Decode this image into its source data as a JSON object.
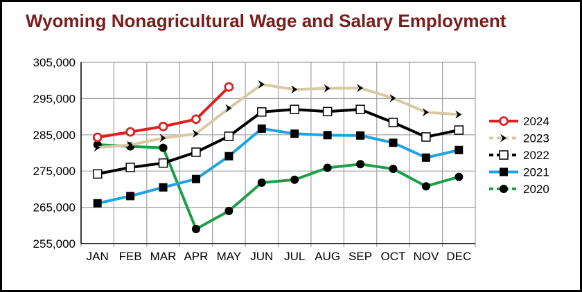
{
  "chart_data": {
    "type": "line",
    "title": "Wyoming Nonagricultural Wage and Salary Employment",
    "xlabel": "",
    "ylabel": "",
    "categories": [
      "JAN",
      "FEB",
      "MAR",
      "APR",
      "MAY",
      "JUN",
      "JUL",
      "AUG",
      "SEP",
      "OCT",
      "NOV",
      "DEC"
    ],
    "ylim": [
      255000,
      305000
    ],
    "yticks": [
      255000,
      265000,
      275000,
      285000,
      295000,
      305000
    ],
    "ytick_labels": [
      "255,000",
      "265,000",
      "275,000",
      "285,000",
      "295,000",
      "305,000"
    ],
    "grid": "horizontal",
    "legend_position": "right",
    "series": [
      {
        "name": "2024",
        "color": "#e02020",
        "marker": "open-circle",
        "values": [
          284300,
          285800,
          287300,
          289300,
          298200,
          null,
          null,
          null,
          null,
          null,
          null,
          null
        ]
      },
      {
        "name": "2023",
        "color": "#d8c9a4",
        "marker": "chevron",
        "values": [
          281500,
          282200,
          284100,
          285300,
          292300,
          298900,
          297500,
          297800,
          297900,
          295100,
          291200,
          290600
        ]
      },
      {
        "name": "2022",
        "color": "#000000",
        "marker": "open-square",
        "values": [
          274200,
          276000,
          277200,
          280200,
          284600,
          291300,
          292000,
          291400,
          292000,
          288400,
          284400,
          286300
        ]
      },
      {
        "name": "2021",
        "color": "#1fa3e0",
        "marker": "filled-square",
        "values": [
          266100,
          268100,
          270500,
          272800,
          279100,
          286700,
          285300,
          284900,
          284800,
          282800,
          278700,
          280800
        ]
      },
      {
        "name": "2020",
        "color": "#1e9e48",
        "marker": "filled-circle",
        "values": [
          282300,
          281800,
          281400,
          259000,
          264000,
          271800,
          272600,
          275900,
          276900,
          275600,
          270800,
          273400
        ]
      }
    ]
  }
}
